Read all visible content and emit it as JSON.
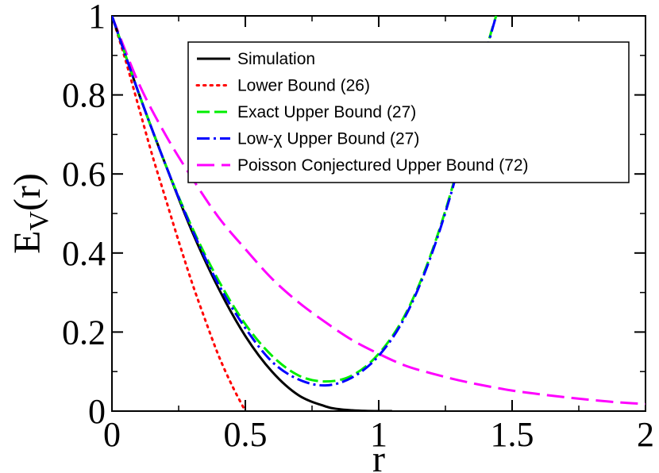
{
  "chart_data": {
    "type": "line",
    "xlabel": "r",
    "ylabel_main": "E",
    "ylabel_sub": "V",
    "ylabel_tail": "(r)",
    "xlim": [
      0,
      2
    ],
    "ylim": [
      0,
      1
    ],
    "x_ticks": [
      {
        "value": 0,
        "label": "0"
      },
      {
        "value": 0.5,
        "label": "0.5"
      },
      {
        "value": 1,
        "label": "1"
      },
      {
        "value": 1.5,
        "label": "1.5"
      },
      {
        "value": 2,
        "label": "2"
      }
    ],
    "y_ticks": [
      {
        "value": 0,
        "label": "0"
      },
      {
        "value": 0.2,
        "label": "0.2"
      },
      {
        "value": 0.4,
        "label": "0.4"
      },
      {
        "value": 0.6,
        "label": "0.6"
      },
      {
        "value": 0.8,
        "label": "0.8"
      },
      {
        "value": 1,
        "label": "1"
      }
    ],
    "legend_position": "top-right",
    "series": [
      {
        "name": "Simulation",
        "color": "#000000",
        "style": "solid",
        "x": [
          0,
          0.1,
          0.2,
          0.3,
          0.4,
          0.5,
          0.6,
          0.7,
          0.8,
          0.85,
          0.9,
          0.95,
          1.0,
          1.05
        ],
        "y": [
          1,
          0.805,
          0.625,
          0.455,
          0.31,
          0.19,
          0.1,
          0.04,
          0.012,
          0.005,
          0.002,
          0.0005,
          0,
          0
        ]
      },
      {
        "name": "Lower Bound (26)",
        "color": "#ff0000",
        "style": "dotted",
        "x": [
          0,
          0.05,
          0.1,
          0.15,
          0.2,
          0.25,
          0.3,
          0.35,
          0.4,
          0.45,
          0.5
        ],
        "y": [
          1,
          0.89,
          0.77,
          0.65,
          0.54,
          0.43,
          0.325,
          0.23,
          0.14,
          0.065,
          0
        ]
      },
      {
        "name": "Exact Upper Bound (27)",
        "color": "#00ee00",
        "style": "dashed",
        "x": [
          0,
          0.1,
          0.2,
          0.3,
          0.4,
          0.5,
          0.6,
          0.7,
          0.8,
          0.9,
          1.0,
          1.1,
          1.2,
          1.3,
          1.4,
          1.44
        ],
        "y": [
          1,
          0.805,
          0.625,
          0.465,
          0.33,
          0.22,
          0.14,
          0.09,
          0.075,
          0.09,
          0.145,
          0.245,
          0.405,
          0.625,
          0.905,
          1.0
        ]
      },
      {
        "name": "Low-χ Upper Bound (27)",
        "color": "#0000ff",
        "style": "dashdot",
        "x": [
          0,
          0.1,
          0.2,
          0.3,
          0.4,
          0.5,
          0.6,
          0.7,
          0.8,
          0.9,
          1.0,
          1.1,
          1.2,
          1.3,
          1.4,
          1.44
        ],
        "y": [
          1,
          0.805,
          0.625,
          0.46,
          0.32,
          0.21,
          0.125,
          0.08,
          0.065,
          0.085,
          0.14,
          0.24,
          0.4,
          0.62,
          0.9,
          1.0
        ]
      },
      {
        "name": "Poisson Conjectured Upper Bound (72)",
        "color": "#ff00ff",
        "style": "longdash",
        "x": [
          0,
          0.1,
          0.2,
          0.3,
          0.4,
          0.5,
          0.6,
          0.7,
          0.8,
          0.9,
          1.0,
          1.1,
          1.2,
          1.3,
          1.4,
          1.5,
          1.6,
          1.7,
          1.8,
          1.9,
          2.0
        ],
        "y": [
          1,
          0.83,
          0.7,
          0.59,
          0.49,
          0.41,
          0.335,
          0.275,
          0.225,
          0.18,
          0.145,
          0.115,
          0.095,
          0.078,
          0.064,
          0.052,
          0.043,
          0.035,
          0.028,
          0.022,
          0.018
        ]
      }
    ]
  }
}
